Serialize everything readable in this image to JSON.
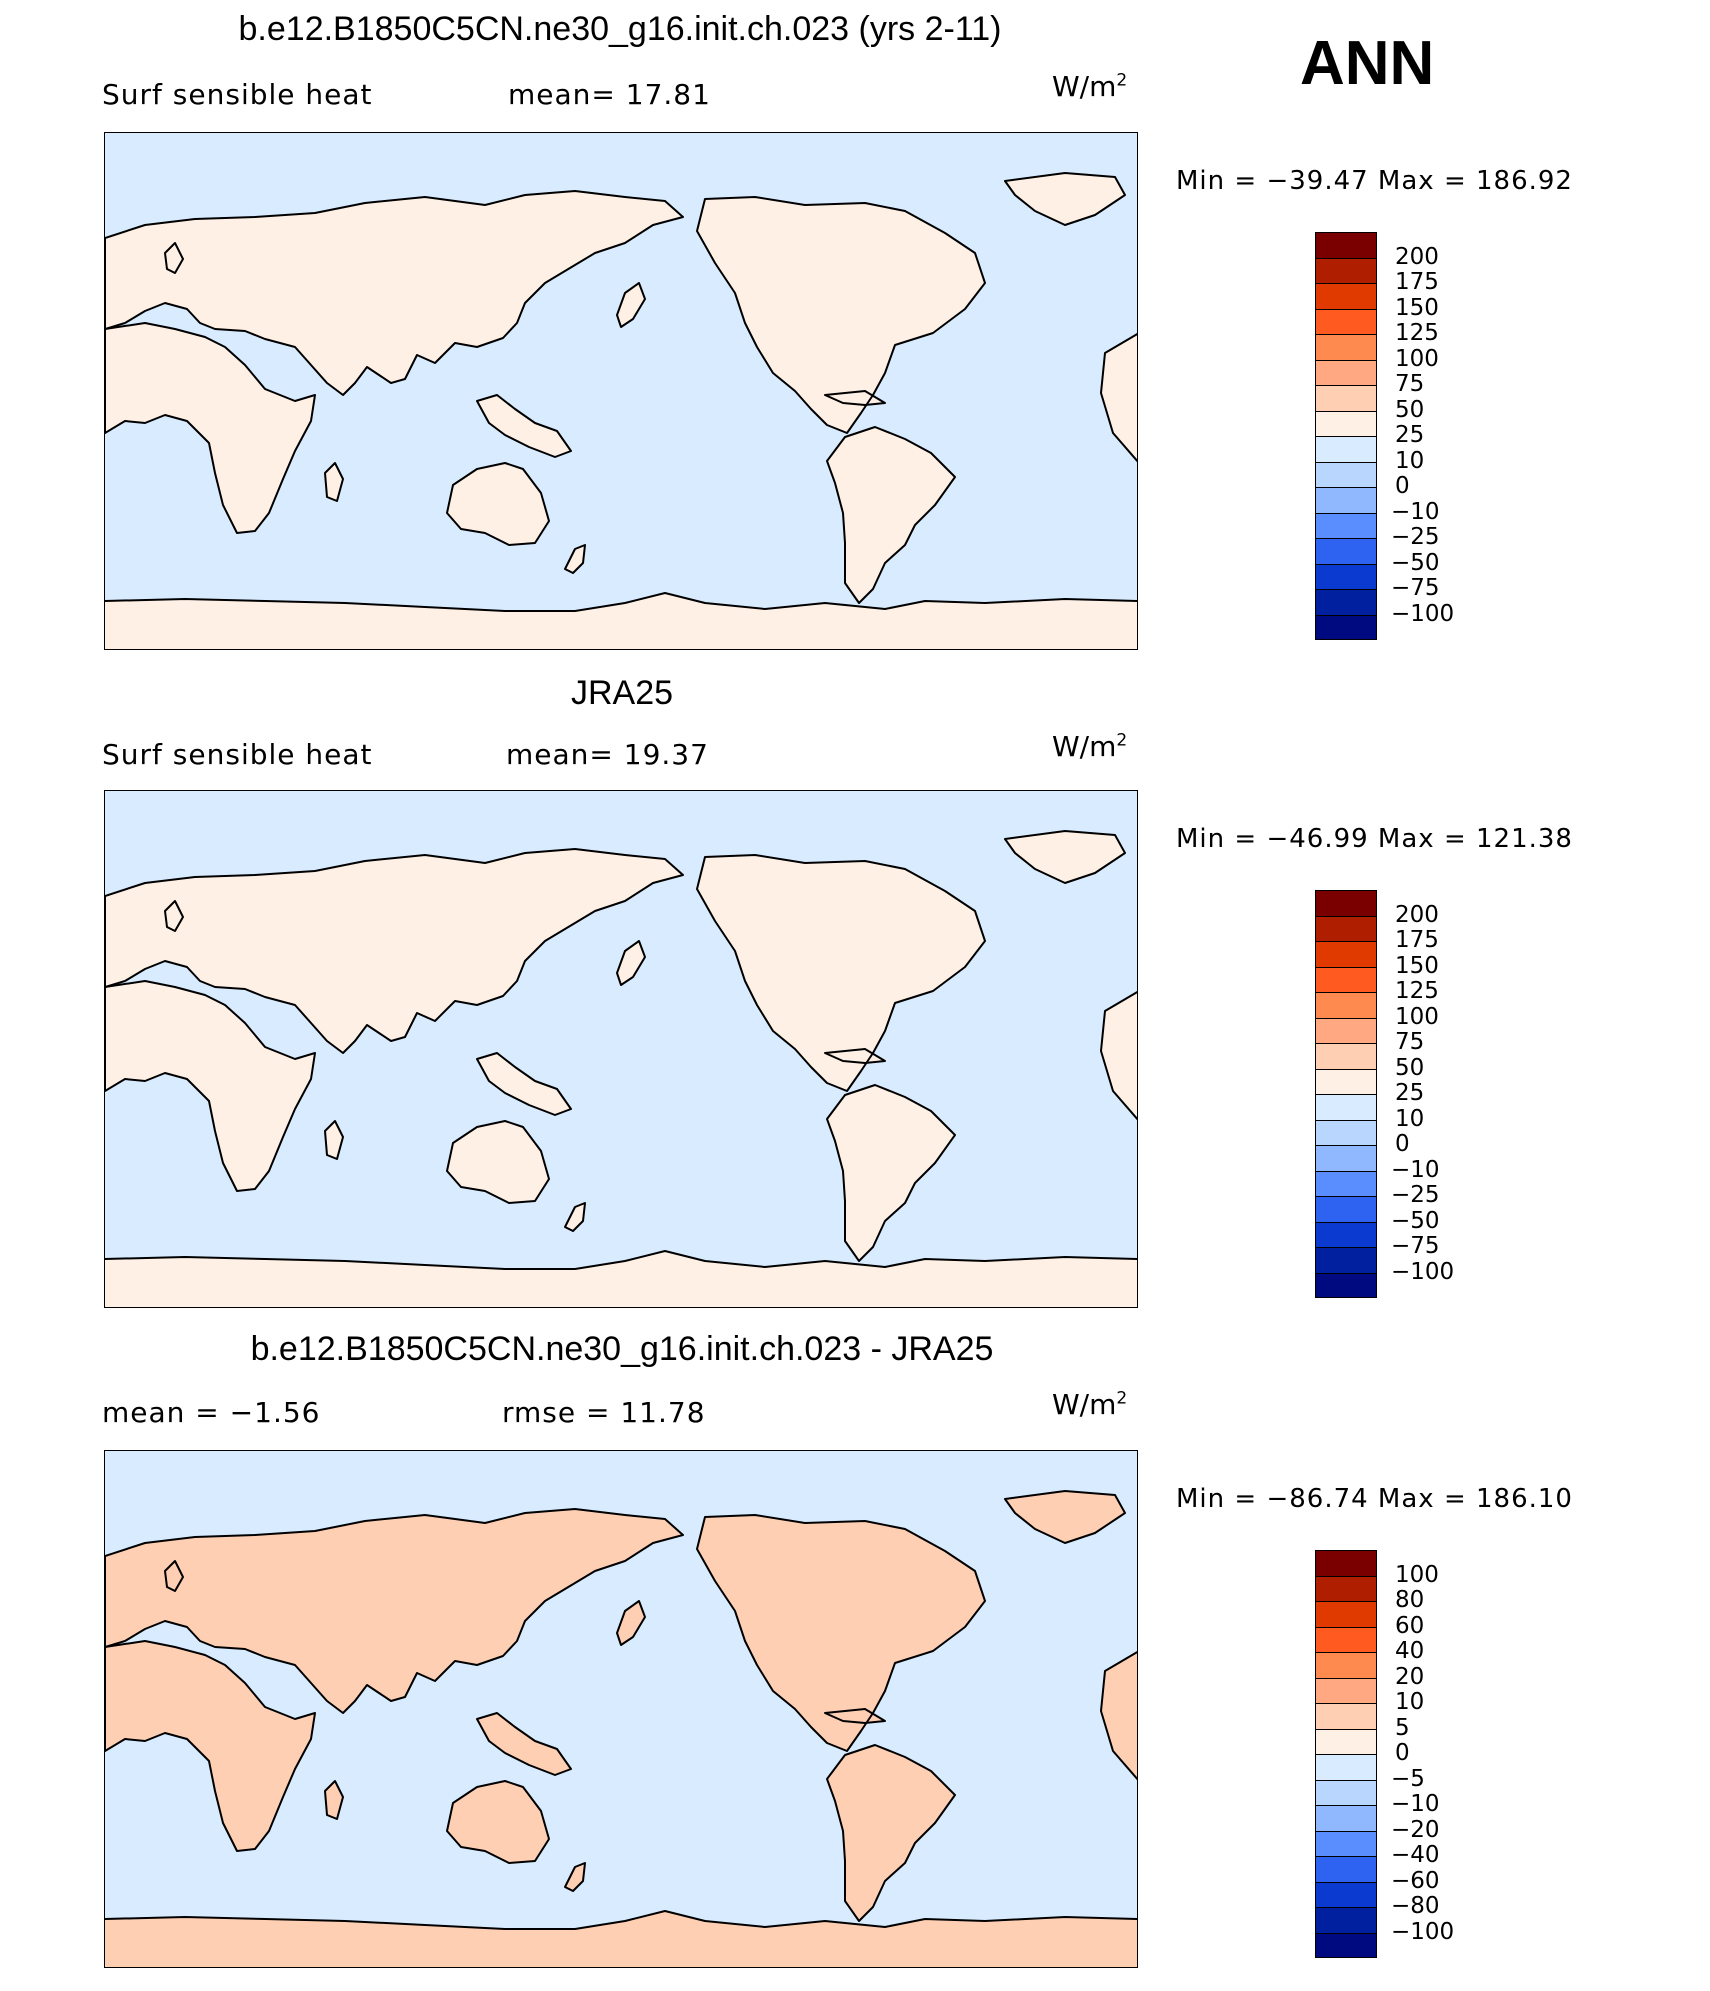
{
  "season": "ANN",
  "panels": [
    {
      "title": "b.e12.B1850C5CN.ne30_g16.init.ch.023 (yrs 2-11)",
      "left_label": "Surf sensible heat",
      "right_label": "mean=  17.81",
      "units": "W/m",
      "units_exp": "2",
      "minmax": "Min = −39.47 Max = 186.92",
      "levels": [
        "200",
        "175",
        "150",
        "125",
        "100",
        "75",
        "50",
        "25",
        "10",
        "0",
        "−10",
        "−25",
        "−50",
        "−75",
        "−100"
      ],
      "colors": [
        "#7a0000",
        "#b01e00",
        "#e03a00",
        "#ff5a20",
        "#ff8a50",
        "#ffa882",
        "#ffcfb4",
        "#fff0e6",
        "#d8ebff",
        "#b9d6ff",
        "#8fb8ff",
        "#5a8eff",
        "#2e62f0",
        "#0a3ad0",
        "#0020a0",
        "#000a80"
      ],
      "map_kind": "model"
    },
    {
      "title": "JRA25",
      "left_label": "Surf sensible heat",
      "right_label": "mean=  19.37",
      "units": "W/m",
      "units_exp": "2",
      "minmax": "Min = −46.99 Max = 121.38",
      "levels": [
        "200",
        "175",
        "150",
        "125",
        "100",
        "75",
        "50",
        "25",
        "10",
        "0",
        "−10",
        "−25",
        "−50",
        "−75",
        "−100"
      ],
      "colors": [
        "#7a0000",
        "#b01e00",
        "#e03a00",
        "#ff5a20",
        "#ff8a50",
        "#ffa882",
        "#ffcfb4",
        "#fff0e6",
        "#d8ebff",
        "#b9d6ff",
        "#8fb8ff",
        "#5a8eff",
        "#2e62f0",
        "#0a3ad0",
        "#0020a0",
        "#000a80"
      ],
      "map_kind": "obs"
    },
    {
      "title": "b.e12.B1850C5CN.ne30_g16.init.ch.023 - JRA25",
      "left_label": "mean =  −1.56",
      "right_label": "rmse =  11.78",
      "units": "W/m",
      "units_exp": "2",
      "minmax": "Min = −86.74 Max = 186.10",
      "levels": [
        "100",
        "80",
        "60",
        "40",
        "20",
        "10",
        "5",
        "0",
        "−5",
        "−10",
        "−20",
        "−40",
        "−60",
        "−80",
        "−100"
      ],
      "colors": [
        "#7a0000",
        "#b01e00",
        "#e03a00",
        "#ff5a20",
        "#ff8a50",
        "#ffa882",
        "#ffcfb4",
        "#fff0e6",
        "#d8ebff",
        "#b9d6ff",
        "#8fb8ff",
        "#5a8eff",
        "#2e62f0",
        "#0a3ad0",
        "#0020a0",
        "#000a80"
      ],
      "map_kind": "diff"
    }
  ]
}
